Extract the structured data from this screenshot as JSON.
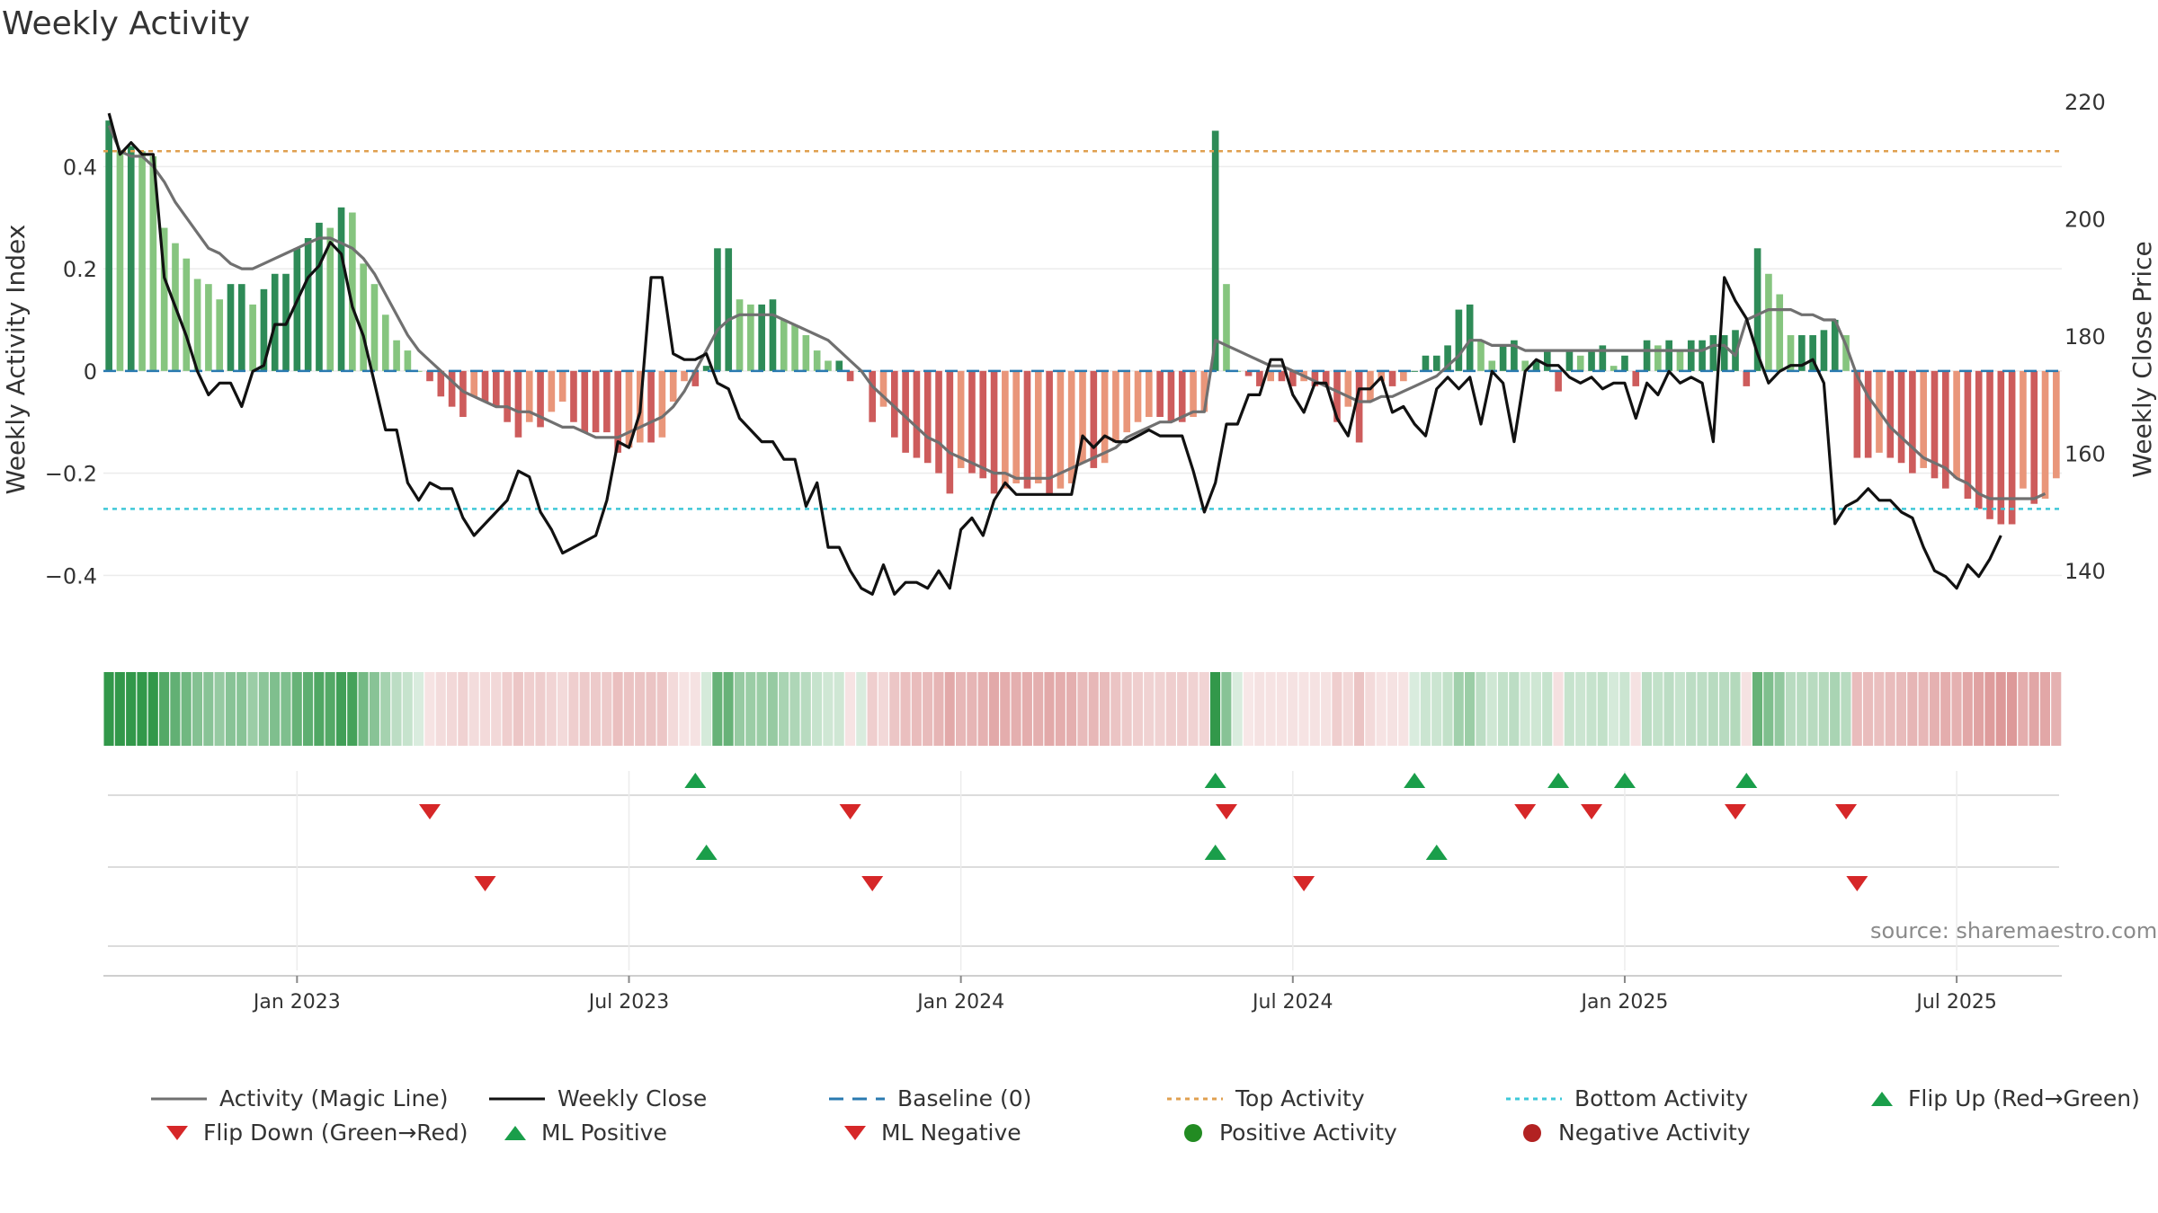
{
  "title": "Weekly Activity",
  "source": "source: sharemaestro.com",
  "colors": {
    "dark_green": "#2e8b57",
    "light_green": "#86c57f",
    "dark_red": "#cd5c5c",
    "light_red": "#e9967a",
    "magic_line": "#707070",
    "close_line": "#111111",
    "baseline": "#2a7ab0",
    "top_line": "#e0a050",
    "bottom_line": "#3ec8d8",
    "up_marker": "#1a9e4a",
    "down_marker": "#d62728"
  },
  "chart_data": {
    "type": "bar",
    "title": "Weekly Activity",
    "ylabel": "Weekly Activity Index",
    "y2label": "Weekly Close Price",
    "ylim": [
      -0.54,
      0.55
    ],
    "y2lim": [
      127,
      222
    ],
    "yticks": [
      -0.4,
      -0.2,
      0,
      0.2,
      0.4
    ],
    "ytick_labels": [
      "−0.4",
      "−0.2",
      "0",
      "0.2",
      "0.4"
    ],
    "y2ticks": [
      140,
      160,
      180,
      200,
      220
    ],
    "xlim": [
      0,
      177
    ],
    "xticks": [
      {
        "week": 17,
        "label": "Jan 2023"
      },
      {
        "week": 47,
        "label": "Jul 2023"
      },
      {
        "week": 77,
        "label": "Jan 2024"
      },
      {
        "week": 107,
        "label": "Jul 2024"
      },
      {
        "week": 137,
        "label": "Jan 2025"
      },
      {
        "week": 167,
        "label": "Jul 2025"
      }
    ],
    "top_activity": 0.43,
    "bottom_activity": -0.27,
    "activity": [
      0.49,
      0.43,
      0.44,
      0.43,
      0.42,
      0.28,
      0.25,
      0.22,
      0.18,
      0.17,
      0.14,
      0.17,
      0.17,
      0.13,
      0.16,
      0.19,
      0.19,
      0.24,
      0.26,
      0.29,
      0.28,
      0.32,
      0.31,
      0.21,
      0.17,
      0.11,
      0.06,
      0.04,
      0,
      -0.02,
      -0.05,
      -0.07,
      -0.09,
      -0.05,
      -0.06,
      -0.07,
      -0.1,
      -0.13,
      -0.1,
      -0.11,
      -0.08,
      -0.06,
      -0.1,
      -0.12,
      -0.12,
      -0.12,
      -0.16,
      -0.15,
      -0.14,
      -0.14,
      -0.13,
      -0.06,
      -0.02,
      -0.03,
      0.01,
      0.24,
      0.24,
      0.14,
      0.13,
      0.13,
      0.14,
      0.1,
      0.09,
      0.07,
      0.04,
      0.02,
      0.02,
      -0.02,
      0,
      -0.1,
      -0.07,
      -0.13,
      -0.16,
      -0.17,
      -0.18,
      -0.2,
      -0.24,
      -0.19,
      -0.2,
      -0.21,
      -0.24,
      -0.23,
      -0.22,
      -0.23,
      -0.22,
      -0.24,
      -0.23,
      -0.22,
      -0.18,
      -0.19,
      -0.18,
      -0.14,
      -0.12,
      -0.1,
      -0.09,
      -0.09,
      -0.1,
      -0.1,
      -0.09,
      -0.08,
      0.47,
      0.17,
      0,
      -0.01,
      -0.03,
      -0.02,
      -0.02,
      -0.03,
      -0.02,
      -0.03,
      -0.03,
      -0.1,
      -0.07,
      -0.14,
      -0.06,
      -0.02,
      -0.03,
      -0.02,
      0,
      0.03,
      0.03,
      0.05,
      0.12,
      0.13,
      0.06,
      0.02,
      0.05,
      0.06,
      0.02,
      0.02,
      0.04,
      -0.04,
      0.04,
      0.03,
      0.04,
      0.05,
      0.01,
      0.03,
      -0.03,
      0.06,
      0.05,
      0.06,
      0.04,
      0.06,
      0.06,
      0.07,
      0.07,
      0.08,
      -0.03,
      0.24,
      0.19,
      0.15,
      0.07,
      0.07,
      0.07,
      0.08,
      0.1,
      0.07,
      -0.17,
      -0.17,
      -0.16,
      -0.17,
      -0.18,
      -0.2,
      -0.19,
      -0.21,
      -0.23,
      -0.21,
      -0.25,
      -0.27,
      -0.29,
      -0.3,
      -0.3,
      -0.23,
      -0.26,
      -0.25,
      -0.21
    ],
    "magic_line": [
      0.48,
      0.43,
      0.42,
      0.42,
      0.4,
      0.37,
      0.33,
      0.3,
      0.27,
      0.24,
      0.23,
      0.21,
      0.2,
      0.2,
      0.21,
      0.22,
      0.23,
      0.24,
      0.25,
      0.26,
      0.26,
      0.25,
      0.24,
      0.22,
      0.19,
      0.15,
      0.11,
      0.07,
      0.04,
      0.02,
      0,
      -0.02,
      -0.04,
      -0.05,
      -0.06,
      -0.07,
      -0.07,
      -0.08,
      -0.08,
      -0.09,
      -0.1,
      -0.11,
      -0.11,
      -0.12,
      -0.13,
      -0.13,
      -0.13,
      -0.12,
      -0.11,
      -0.1,
      -0.09,
      -0.07,
      -0.04,
      0,
      0.04,
      0.08,
      0.1,
      0.11,
      0.11,
      0.11,
      0.11,
      0.1,
      0.09,
      0.08,
      0.07,
      0.06,
      0.04,
      0.02,
      0,
      -0.03,
      -0.05,
      -0.07,
      -0.09,
      -0.11,
      -0.13,
      -0.14,
      -0.16,
      -0.17,
      -0.18,
      -0.19,
      -0.2,
      -0.2,
      -0.21,
      -0.21,
      -0.21,
      -0.21,
      -0.2,
      -0.19,
      -0.18,
      -0.17,
      -0.16,
      -0.15,
      -0.13,
      -0.12,
      -0.11,
      -0.1,
      -0.1,
      -0.09,
      -0.08,
      -0.08,
      0.06,
      0.05,
      0.04,
      0.03,
      0.02,
      0.01,
      0.01,
      0,
      -0.01,
      -0.02,
      -0.03,
      -0.04,
      -0.05,
      -0.06,
      -0.06,
      -0.05,
      -0.05,
      -0.04,
      -0.03,
      -0.02,
      -0.01,
      0.01,
      0.03,
      0.06,
      0.06,
      0.05,
      0.05,
      0.05,
      0.04,
      0.04,
      0.04,
      0.04,
      0.04,
      0.04,
      0.04,
      0.04,
      0.04,
      0.04,
      0.04,
      0.04,
      0.04,
      0.04,
      0.04,
      0.04,
      0.04,
      0.05,
      0.05,
      0.03,
      0.1,
      0.11,
      0.12,
      0.12,
      0.12,
      0.11,
      0.11,
      0.1,
      0.1,
      0.05,
      -0.01,
      -0.05,
      -0.08,
      -0.11,
      -0.13,
      -0.15,
      -0.17,
      -0.18,
      -0.19,
      -0.21,
      -0.22,
      -0.24,
      -0.25,
      -0.25,
      -0.25,
      -0.25,
      -0.25,
      -0.24
    ],
    "weekly_close": [
      218,
      211,
      213,
      211,
      211,
      190,
      185,
      180,
      174,
      170,
      172,
      172,
      168,
      174,
      175,
      182,
      182,
      186,
      190,
      192,
      196,
      194,
      185,
      180,
      172,
      164,
      164,
      155,
      152,
      155,
      154,
      154,
      149,
      146,
      148,
      150,
      152,
      157,
      156,
      150,
      147,
      143,
      144,
      145,
      146,
      152,
      162,
      161,
      167,
      190,
      190,
      177,
      176,
      176,
      177,
      172,
      171,
      166,
      164,
      162,
      162,
      159,
      159,
      151,
      155,
      144,
      144,
      140,
      137,
      136,
      141,
      136,
      138,
      138,
      137,
      140,
      137,
      147,
      149,
      146,
      152,
      155,
      153,
      153,
      153,
      153,
      153,
      153,
      163,
      161,
      163,
      162,
      162,
      163,
      164,
      163,
      163,
      163,
      157,
      150,
      155,
      165,
      165,
      170,
      170,
      176,
      176,
      170,
      167,
      172,
      172,
      166,
      163,
      171,
      171,
      173,
      167,
      168,
      165,
      163,
      171,
      173,
      171,
      173,
      165,
      174,
      172,
      162,
      174,
      176,
      175,
      175,
      173,
      172,
      173,
      171,
      172,
      172,
      166,
      172,
      170,
      174,
      172,
      173,
      172,
      162,
      190,
      186,
      183,
      177,
      172,
      174,
      175,
      175,
      176,
      172,
      148,
      151,
      152,
      154,
      152,
      152,
      150,
      149,
      144,
      140,
      139,
      137,
      141,
      139,
      142,
      146
    ],
    "flip_up": [
      53,
      100,
      118,
      131,
      137,
      148
    ],
    "flip_down": [
      29,
      67,
      101,
      128,
      134,
      147,
      157
    ],
    "ml_positive": [
      54,
      100,
      120
    ],
    "ml_negative": [
      34,
      69,
      108,
      158
    ],
    "positive_activity": [],
    "negative_activity": []
  },
  "legend": [
    {
      "key": "magic",
      "label": "Activity (Magic Line)"
    },
    {
      "key": "close",
      "label": "Weekly Close"
    },
    {
      "key": "baseline",
      "label": "Baseline (0)"
    },
    {
      "key": "top",
      "label": "Top Activity"
    },
    {
      "key": "bottom",
      "label": "Bottom Activity"
    },
    {
      "key": "flipup",
      "label": "Flip Up (Red→Green)"
    },
    {
      "key": "flipdown",
      "label": "Flip Down (Green→Red)"
    },
    {
      "key": "mlpos",
      "label": "ML Positive"
    },
    {
      "key": "mlneg",
      "label": "ML Negative"
    },
    {
      "key": "posact",
      "label": "Positive Activity"
    },
    {
      "key": "negact",
      "label": "Negative Activity"
    }
  ]
}
